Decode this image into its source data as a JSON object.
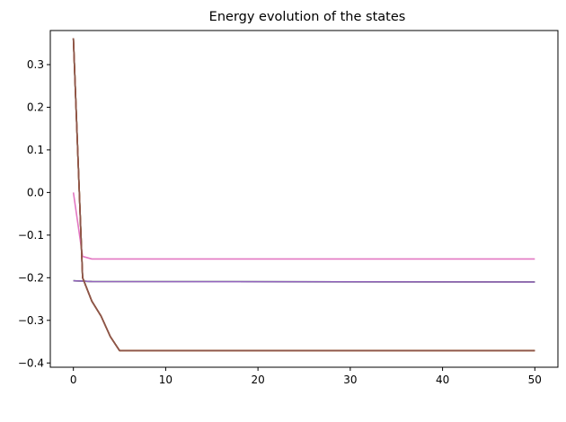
{
  "chart_data": {
    "type": "line",
    "title": "Energy evolution of the states",
    "xlabel": "",
    "ylabel": "",
    "xlim": [
      -2.5,
      52.5
    ],
    "ylim": [
      -0.41,
      0.38
    ],
    "grid": false,
    "legend": "none",
    "x_ticks": [
      0,
      10,
      20,
      30,
      40,
      50
    ],
    "x_tick_labels": [
      "0",
      "10",
      "20",
      "30",
      "40",
      "50"
    ],
    "y_ticks": [
      -0.4,
      -0.3,
      -0.2,
      -0.1,
      0.0,
      0.1,
      0.2,
      0.3
    ],
    "y_tick_labels": [
      "−0.4",
      "−0.3",
      "−0.2",
      "−0.1",
      "0.0",
      "0.1",
      "0.2",
      "0.3"
    ],
    "series": [
      {
        "color": "#e377c2",
        "points": [
          [
            0,
            0.0
          ],
          [
            1,
            -0.15
          ],
          [
            2,
            -0.156
          ],
          [
            5,
            -0.156
          ],
          [
            50,
            -0.156
          ]
        ]
      },
      {
        "color": "#17becf",
        "points": [
          [
            0,
            -0.207
          ],
          [
            1,
            -0.208
          ],
          [
            2,
            -0.209
          ],
          [
            50,
            -0.21
          ]
        ]
      },
      {
        "color": "#bcbd22",
        "points": [
          [
            0,
            -0.207
          ],
          [
            1,
            -0.208
          ],
          [
            2,
            -0.209
          ],
          [
            50,
            -0.21
          ]
        ]
      },
      {
        "color": "#7f7f7f",
        "points": [
          [
            0,
            -0.207
          ],
          [
            1,
            -0.208
          ],
          [
            2,
            -0.209
          ],
          [
            50,
            -0.21
          ]
        ]
      },
      {
        "color": "#9467bd",
        "points": [
          [
            0,
            -0.207
          ],
          [
            1,
            -0.208
          ],
          [
            2,
            -0.209
          ],
          [
            50,
            -0.21
          ]
        ]
      },
      {
        "color": "#1f77b4",
        "points": [
          [
            0,
            0.362
          ],
          [
            1,
            -0.2
          ],
          [
            2,
            -0.255
          ],
          [
            3,
            -0.29
          ],
          [
            4,
            -0.338
          ],
          [
            5,
            -0.371
          ],
          [
            50,
            -0.371
          ]
        ]
      },
      {
        "color": "#ff7f0e",
        "points": [
          [
            0,
            0.362
          ],
          [
            1,
            -0.2
          ],
          [
            2,
            -0.255
          ],
          [
            3,
            -0.29
          ],
          [
            4,
            -0.338
          ],
          [
            5,
            -0.371
          ],
          [
            50,
            -0.371
          ]
        ]
      },
      {
        "color": "#2ca02c",
        "points": [
          [
            0,
            0.362
          ],
          [
            1,
            -0.2
          ],
          [
            2,
            -0.255
          ],
          [
            3,
            -0.29
          ],
          [
            4,
            -0.338
          ],
          [
            5,
            -0.371
          ],
          [
            50,
            -0.371
          ]
        ]
      },
      {
        "color": "#d62728",
        "points": [
          [
            0,
            0.362
          ],
          [
            1,
            -0.2
          ],
          [
            2,
            -0.255
          ],
          [
            3,
            -0.29
          ],
          [
            4,
            -0.338
          ],
          [
            5,
            -0.371
          ],
          [
            50,
            -0.371
          ]
        ]
      },
      {
        "color": "#8c564b",
        "points": [
          [
            0,
            0.362
          ],
          [
            1,
            -0.2
          ],
          [
            2,
            -0.255
          ],
          [
            3,
            -0.29
          ],
          [
            4,
            -0.338
          ],
          [
            5,
            -0.371
          ],
          [
            50,
            -0.371
          ]
        ]
      }
    ]
  }
}
